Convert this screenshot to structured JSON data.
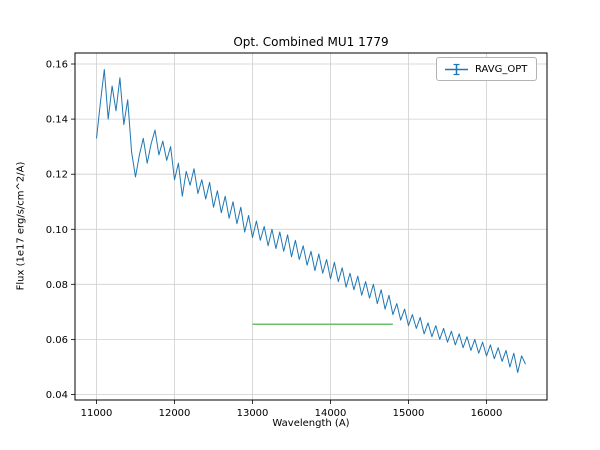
{
  "title": "Opt. Combined MU1 1779",
  "legend": {
    "label": "RAVG_OPT"
  },
  "colors": {
    "spectrum": "#1f77b4",
    "flat_segment": "#6abf69",
    "grid": "#cfcfcf",
    "axes": "#000000"
  },
  "chart_data": {
    "type": "line",
    "title": "Opt. Combined MU1 1779",
    "xlabel": "Wavelength (A)",
    "ylabel": "Flux (1e17 erg/s/cm^2/A)",
    "xlim": [
      10725,
      16775
    ],
    "ylim": [
      0.038,
      0.164
    ],
    "xticks": [
      11000,
      12000,
      13000,
      14000,
      15000,
      16000
    ],
    "yticks": [
      0.04,
      0.06,
      0.08,
      0.1,
      0.12,
      0.14,
      0.16
    ],
    "grid": true,
    "legend_position": "upper right",
    "series": [
      {
        "name": "RAVG_OPT",
        "color": "#1f77b4",
        "width": 1,
        "x": [
          11000,
          11050,
          11100,
          11150,
          11200,
          11250,
          11300,
          11350,
          11400,
          11450,
          11500,
          11550,
          11600,
          11650,
          11700,
          11750,
          11800,
          11850,
          11900,
          11950,
          12000,
          12050,
          12100,
          12150,
          12200,
          12250,
          12300,
          12350,
          12400,
          12450,
          12500,
          12550,
          12600,
          12650,
          12700,
          12750,
          12800,
          12850,
          12900,
          12950,
          13000,
          13050,
          13100,
          13150,
          13200,
          13250,
          13300,
          13350,
          13400,
          13450,
          13500,
          13550,
          13600,
          13650,
          13700,
          13750,
          13800,
          13850,
          13900,
          13950,
          14000,
          14050,
          14100,
          14150,
          14200,
          14250,
          14300,
          14350,
          14400,
          14450,
          14500,
          14550,
          14600,
          14650,
          14700,
          14750,
          14800,
          14850,
          14900,
          14950,
          15000,
          15050,
          15100,
          15150,
          15200,
          15250,
          15300,
          15350,
          15400,
          15450,
          15500,
          15550,
          15600,
          15650,
          15700,
          15750,
          15800,
          15850,
          15900,
          15950,
          16000,
          16050,
          16100,
          16150,
          16200,
          16250,
          16300,
          16350,
          16400,
          16450,
          16500
        ],
        "y": [
          0.133,
          0.146,
          0.158,
          0.14,
          0.152,
          0.143,
          0.155,
          0.138,
          0.147,
          0.128,
          0.119,
          0.127,
          0.133,
          0.124,
          0.131,
          0.136,
          0.127,
          0.132,
          0.125,
          0.13,
          0.118,
          0.124,
          0.112,
          0.121,
          0.116,
          0.122,
          0.113,
          0.118,
          0.111,
          0.117,
          0.108,
          0.114,
          0.106,
          0.112,
          0.104,
          0.11,
          0.102,
          0.108,
          0.099,
          0.105,
          0.097,
          0.103,
          0.096,
          0.101,
          0.094,
          0.1,
          0.093,
          0.099,
          0.092,
          0.098,
          0.09,
          0.096,
          0.089,
          0.094,
          0.087,
          0.092,
          0.085,
          0.091,
          0.084,
          0.089,
          0.082,
          0.088,
          0.081,
          0.086,
          0.079,
          0.084,
          0.078,
          0.083,
          0.076,
          0.081,
          0.075,
          0.08,
          0.073,
          0.078,
          0.071,
          0.076,
          0.069,
          0.073,
          0.067,
          0.071,
          0.065,
          0.069,
          0.064,
          0.068,
          0.062,
          0.066,
          0.061,
          0.065,
          0.06,
          0.064,
          0.059,
          0.063,
          0.058,
          0.062,
          0.057,
          0.061,
          0.056,
          0.06,
          0.055,
          0.059,
          0.054,
          0.058,
          0.053,
          0.057,
          0.052,
          0.056,
          0.05,
          0.055,
          0.048,
          0.054,
          0.051
        ]
      },
      {
        "name": "flat_segment",
        "color": "#6abf69",
        "width": 1.5,
        "x": [
          13000,
          14800
        ],
        "y": [
          0.0655,
          0.0655
        ]
      }
    ]
  }
}
